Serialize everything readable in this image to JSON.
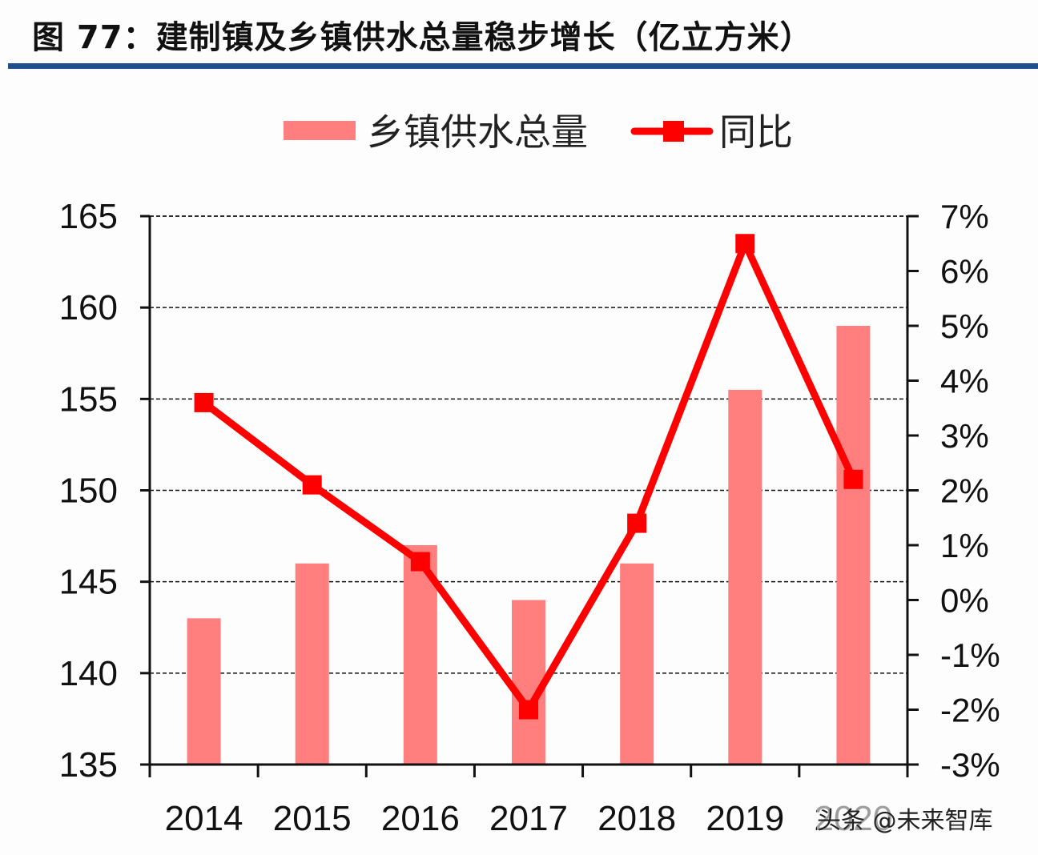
{
  "title": "图 77：建制镇及乡镇供水总量稳步增长（亿立方米）",
  "watermark": "头条 @未来智库",
  "colors": {
    "bar": "#ff7f7f",
    "line": "#ff0000",
    "title_rule": "#1e4f8f",
    "axis": "#111111"
  },
  "legend": {
    "items": [
      {
        "label": "乡镇供水总量",
        "type": "bar"
      },
      {
        "label": "同比",
        "type": "line"
      }
    ]
  },
  "chart_data": {
    "type": "bar",
    "title": "图 77：建制镇及乡镇供水总量稳步增长（亿立方米）",
    "categories": [
      "2014",
      "2015",
      "2016",
      "2017",
      "2018",
      "2019",
      "2020"
    ],
    "series": [
      {
        "name": "乡镇供水总量",
        "type": "bar",
        "axis": "left",
        "values": [
          143,
          146,
          147,
          144,
          146,
          155.5,
          159
        ]
      },
      {
        "name": "同比",
        "type": "line",
        "axis": "right",
        "unit": "%",
        "values": [
          3.6,
          2.1,
          0.7,
          -2.0,
          1.4,
          6.5,
          2.2
        ]
      }
    ],
    "xlabel": "",
    "ylabel": "",
    "ylim": [
      135,
      165
    ],
    "y_ticks": [
      "135",
      "140",
      "145",
      "150",
      "155",
      "160",
      "165"
    ],
    "y2lim": [
      -3,
      7
    ],
    "y2_ticks": [
      "-3%",
      "-2%",
      "-1%",
      "0%",
      "1%",
      "2%",
      "3%",
      "4%",
      "5%",
      "6%",
      "7%"
    ],
    "grid": "horizontal dashed",
    "legend_position": "top"
  }
}
